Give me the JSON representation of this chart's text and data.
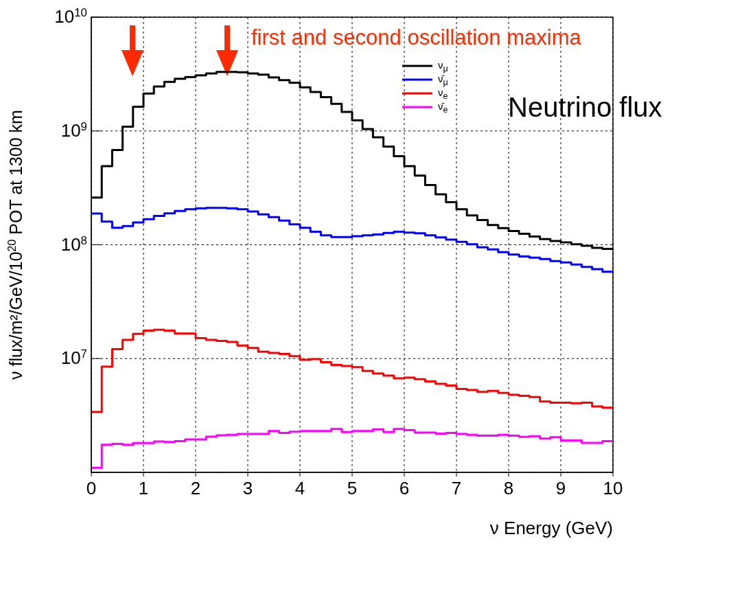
{
  "chart_data": {
    "type": "histogram",
    "xlabel": "ν Energy (GeV)",
    "ylabel": "ν flux/m²/GeV/10$^{20}$ POT at 1300 km",
    "annotations": [
      "first and second oscillation maxima",
      "Neutrino flux"
    ],
    "bins": [
      0,
      0.2,
      0.4,
      0.6,
      0.8,
      1,
      1.2,
      1.4,
      1.6,
      1.8,
      2,
      2.2,
      2.4,
      2.6,
      2.8,
      3,
      3.2,
      3.4,
      3.6,
      3.8,
      4,
      4.2,
      4.4,
      4.6,
      4.8,
      5,
      5.2,
      5.4,
      5.6,
      5.8,
      6,
      6.2,
      6.4,
      6.6,
      6.8,
      7,
      7.2,
      7.4,
      7.6,
      7.8,
      8,
      8.2,
      8.4,
      8.6,
      8.8,
      9,
      9.2,
      9.4,
      9.6,
      9.8,
      10
    ],
    "series": [
      {
        "name": "ν$_{μ}$",
        "color": "#000000",
        "values": [
          260000000.0,
          490000000.0,
          680000000.0,
          1090000000.0,
          1630000000.0,
          2130000000.0,
          2460000000.0,
          2700000000.0,
          2870000000.0,
          2980000000.0,
          3080000000.0,
          3200000000.0,
          3300000000.0,
          3300000000.0,
          3280000000.0,
          3200000000.0,
          3120000000.0,
          2960000000.0,
          2800000000.0,
          2650000000.0,
          2420000000.0,
          2200000000.0,
          1980000000.0,
          1730000000.0,
          1470000000.0,
          1240000000.0,
          1040000000.0,
          880000000.0,
          730000000.0,
          600000000.0,
          490000000.0,
          406000000.0,
          335000000.0,
          278000000.0,
          237000000.0,
          205000000.0,
          181000000.0,
          165000000.0,
          149000000.0,
          140000000.0,
          132000000.0,
          125000000.0,
          118000000.0,
          112000000.0,
          108000000.0,
          105000000.0,
          101000000.0,
          98000000.0,
          94000000.0,
          92000000.0
        ]
      },
      {
        "name": "ν̄$_{μ}$",
        "color": "#0000ff",
        "values": [
          188000000.0,
          160000000.0,
          141000000.0,
          146000000.0,
          157000000.0,
          168000000.0,
          179000000.0,
          189000000.0,
          198000000.0,
          205000000.0,
          209000000.0,
          211000000.0,
          211000000.0,
          209000000.0,
          205000000.0,
          196000000.0,
          185000000.0,
          175000000.0,
          163000000.0,
          151000000.0,
          141000000.0,
          130000000.0,
          121000000.0,
          117000000.0,
          117000000.0,
          119000000.0,
          121000000.0,
          123000000.0,
          127000000.0,
          130000000.0,
          128000000.0,
          126000000.0,
          121000000.0,
          116000000.0,
          111000000.0,
          106000000.0,
          101000000.0,
          95000000.0,
          91000000.0,
          86000000.0,
          82000000.0,
          79000000.0,
          77000000.0,
          75000000.0,
          72000000.0,
          70000000.0,
          67000000.0,
          64000000.0,
          61000000.0,
          58000000.0
        ]
      },
      {
        "name": "ν$_{e}$",
        "color": "#ff0000",
        "values": [
          3400000.0,
          8500000.0,
          12100000.0,
          14600000.0,
          16500000.0,
          17600000.0,
          17900000.0,
          17600000.0,
          16600000.0,
          16600000.0,
          15100000.0,
          14600000.0,
          14300000.0,
          14000000.0,
          13000000.0,
          12400000.0,
          11500000.0,
          11200000.0,
          11000000.0,
          10500000.0,
          9750000.0,
          9900000.0,
          9300000.0,
          8800000.0,
          8600000.0,
          8400000.0,
          7800000.0,
          7400000.0,
          7100000.0,
          6700000.0,
          6800000.0,
          6600000.0,
          6300000.0,
          6000000.0,
          5800000.0,
          5400000.0,
          5300000.0,
          5100000.0,
          5200000.0,
          5000000.0,
          4800000.0,
          4700000.0,
          4600000.0,
          4200000.0,
          4100000.0,
          4100000.0,
          4060000.0,
          4100000.0,
          3800000.0,
          3700000.0
        ]
      },
      {
        "name": "ν̄$_{e}$",
        "color": "#ff00ff",
        "values": [
          1100000.0,
          1750000.0,
          1780000.0,
          1750000.0,
          1810000.0,
          1810000.0,
          1870000.0,
          1850000.0,
          1880000.0,
          1950000.0,
          1950000.0,
          2060000.0,
          2120000.0,
          2140000.0,
          2180000.0,
          2180000.0,
          2180000.0,
          2310000.0,
          2220000.0,
          2280000.0,
          2310000.0,
          2310000.0,
          2310000.0,
          2410000.0,
          2260000.0,
          2310000.0,
          2310000.0,
          2390000.0,
          2260000.0,
          2410000.0,
          2350000.0,
          2240000.0,
          2240000.0,
          2190000.0,
          2220000.0,
          2180000.0,
          2140000.0,
          2100000.0,
          2100000.0,
          2140000.0,
          2100000.0,
          2050000.0,
          2080000.0,
          1980000.0,
          2040000.0,
          1910000.0,
          1910000.0,
          1820000.0,
          1820000.0,
          1880000.0
        ]
      }
    ],
    "xlim": [
      0,
      10
    ],
    "xticks": [
      0,
      1,
      2,
      3,
      4,
      5,
      6,
      7,
      8,
      9,
      10
    ],
    "ylim": [
      1000000.0,
      10000000000.0
    ],
    "log": "y",
    "yticks": [
      {
        "value": 1000000.0,
        "label": null
      },
      {
        "value": 10000000.0,
        "label": "10$^{7}$"
      },
      {
        "value": 100000000.0,
        "label": "10$^{8}$"
      },
      {
        "value": 1000000000.0,
        "label": "10$^{9}$"
      },
      {
        "value": 10000000000.0,
        "label": "10$^{10}$"
      }
    ],
    "grid": true,
    "legend": "top right"
  }
}
